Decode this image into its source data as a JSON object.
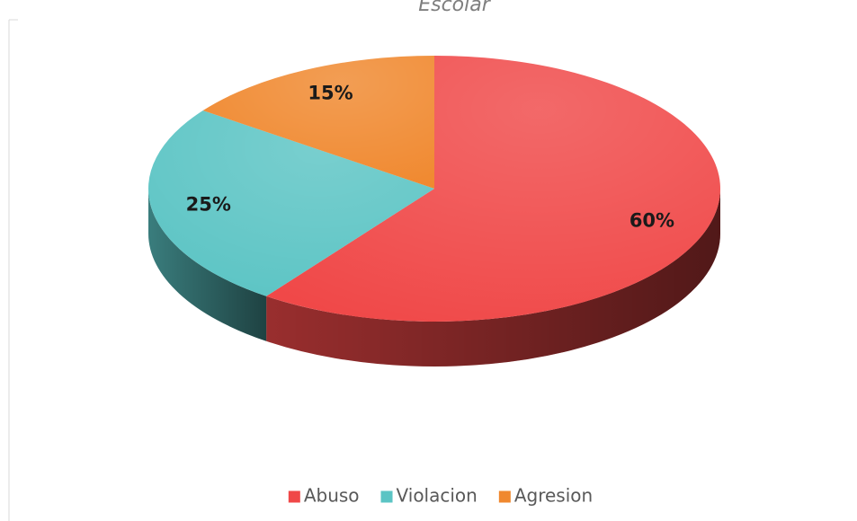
{
  "chart_data": {
    "type": "pie",
    "title": "Escolar",
    "categories": [
      "Abuso",
      "Violacion",
      "Agresion"
    ],
    "values": [
      60,
      25,
      15
    ],
    "value_labels": [
      "60%",
      "25%",
      "15%"
    ],
    "colors": [
      "#f04848",
      "#5bc4c4",
      "#f0882e"
    ],
    "legend": "bottom"
  }
}
